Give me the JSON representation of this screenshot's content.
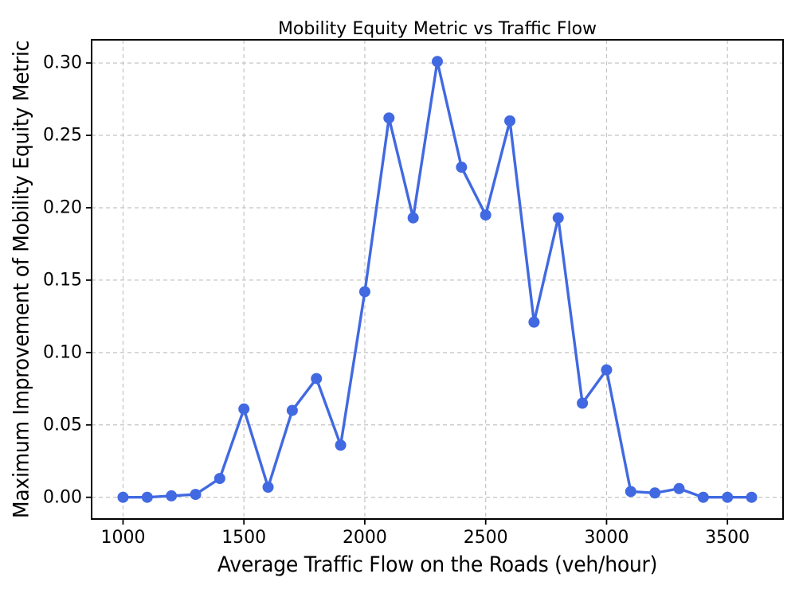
{
  "figure": {
    "title": "Mobility Equity Metric vs Traffic Flow",
    "xlabel": "Average Traffic Flow on the Roads (veh/hour)",
    "ylabel": "Maximum Improvement of Mobility Equity Metric"
  },
  "colors": {
    "line": "#4169E1",
    "marker": "#4169E1",
    "grid": "#c4c4c4",
    "frame": "#000000",
    "text": "#000000",
    "background": "#ffffff"
  },
  "chart_data": {
    "type": "line",
    "title": "Mobility Equity Metric vs Traffic Flow",
    "xlabel": "Average Traffic Flow on the Roads (veh/hour)",
    "ylabel": "Maximum Improvement of Mobility Equity Metric",
    "x": [
      1000,
      1100,
      1200,
      1300,
      1400,
      1500,
      1600,
      1700,
      1800,
      1900,
      2000,
      2100,
      2200,
      2300,
      2400,
      2500,
      2600,
      2700,
      2800,
      2900,
      3000,
      3100,
      3200,
      3300,
      3400,
      3500,
      3600
    ],
    "y": [
      0.0,
      0.0,
      0.001,
      0.002,
      0.013,
      0.061,
      0.007,
      0.06,
      0.082,
      0.036,
      0.142,
      0.262,
      0.193,
      0.301,
      0.228,
      0.195,
      0.26,
      0.121,
      0.193,
      0.065,
      0.088,
      0.004,
      0.003,
      0.006,
      0.0,
      0.0,
      0.0
    ],
    "xlim": [
      870,
      3730
    ],
    "ylim": [
      -0.015,
      0.316
    ],
    "xticks": [
      1000,
      1500,
      2000,
      2500,
      3000,
      3500
    ],
    "xtick_labels": [
      "1000",
      "1500",
      "2000",
      "2500",
      "3000",
      "3500"
    ],
    "yticks": [
      0.0,
      0.05,
      0.1,
      0.15,
      0.2,
      0.25,
      0.3
    ],
    "ytick_labels": [
      "0.00",
      "0.05",
      "0.10",
      "0.15",
      "0.20",
      "0.25",
      "0.30"
    ],
    "grid": true,
    "grid_style": "dashed",
    "legend_position": "none",
    "marker": "o",
    "line_style": "solid"
  }
}
